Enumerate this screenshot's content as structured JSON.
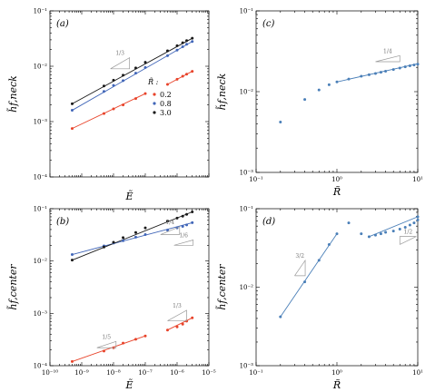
{
  "legend": {
    "title": "R̃ :",
    "entries": [
      {
        "label": "0.2",
        "color": "#e8432a"
      },
      {
        "label": "0.8",
        "color": "#4166b8"
      },
      {
        "label": "3.0",
        "color": "#1a1a1a"
      }
    ]
  },
  "colors": {
    "red": "#e8432a",
    "blue": "#4166b8",
    "black": "#1a1a1a",
    "steel": "#4a7fb8",
    "annot": "#999999"
  },
  "chart_data": [
    {
      "id": "a",
      "panel_label": "(a)",
      "type": "scatter",
      "xlabel": "Ẽ",
      "ylabel": "h̃f,neck",
      "xscale": "log",
      "yscale": "log",
      "xlim": [
        1e-10,
        1e-05
      ],
      "ylim": [
        0.0001,
        0.1
      ],
      "xticks": [
        "10⁻¹⁰",
        "10⁻⁹",
        "10⁻⁸",
        "10⁻⁷",
        "10⁻⁶",
        "10⁻⁵"
      ],
      "yticks": [
        "10⁻⁴",
        "10⁻³",
        "10⁻²",
        "10⁻¹"
      ],
      "xticklabels_visible": false,
      "series": [
        {
          "name": "0.2",
          "color": "#e8432a",
          "x": [
            5e-10,
            5e-09,
            1e-08,
            2e-08,
            5e-08,
            1e-07,
            5e-07,
            1e-06,
            1.5e-06,
            2e-06,
            3e-06
          ],
          "y": [
            0.00075,
            0.0014,
            0.0017,
            0.002,
            0.0026,
            0.0032,
            0.0047,
            0.0058,
            0.0066,
            0.0072,
            0.0081
          ]
        },
        {
          "name": "0.8",
          "color": "#4166b8",
          "x": [
            5e-10,
            5e-09,
            1e-08,
            2e-08,
            5e-08,
            1e-07,
            5e-07,
            1e-06,
            1.5e-06,
            2e-06,
            3e-06
          ],
          "y": [
            0.0016,
            0.0035,
            0.0045,
            0.0055,
            0.0075,
            0.0095,
            0.0155,
            0.0195,
            0.0225,
            0.025,
            0.028
          ]
        },
        {
          "name": "3.0",
          "color": "#1a1a1a",
          "x": [
            5e-10,
            5e-09,
            1e-08,
            2e-08,
            5e-08,
            1e-07,
            5e-07,
            1e-06,
            1.5e-06,
            2e-06,
            3e-06
          ],
          "y": [
            0.0021,
            0.0044,
            0.0056,
            0.0069,
            0.0093,
            0.0118,
            0.019,
            0.0235,
            0.0265,
            0.029,
            0.032
          ]
        }
      ],
      "fits": [
        {
          "color": "#e8432a",
          "x": [
            5e-10,
            1e-07
          ],
          "y": [
            0.00075,
            0.0032
          ]
        },
        {
          "color": "#e8432a",
          "x": [
            5e-07,
            3e-06
          ],
          "y": [
            0.0047,
            0.0081
          ]
        },
        {
          "color": "#4166b8",
          "x": [
            5e-10,
            3e-06
          ],
          "y": [
            0.0016,
            0.028
          ]
        },
        {
          "color": "#1a1a1a",
          "x": [
            5e-10,
            3e-06
          ],
          "y": [
            0.0021,
            0.032
          ]
        }
      ],
      "slopes": [
        {
          "label": "1/3",
          "x": 8e-09,
          "y": 0.009,
          "xr": 4,
          "dir": 1
        }
      ]
    },
    {
      "id": "c",
      "panel_label": "(c)",
      "type": "scatter",
      "xlabel": "R̃",
      "ylabel": "h̃f,neck",
      "xscale": "log",
      "yscale": "log",
      "xlim": [
        0.1,
        10
      ],
      "ylim": [
        0.001,
        0.1
      ],
      "xticks": [
        "10⁻¹",
        "10⁰",
        "10¹"
      ],
      "yticks": [
        "10⁻³",
        "10⁻²",
        "10⁻¹"
      ],
      "xticklabels_visible": true,
      "series": [
        {
          "name": "",
          "color": "#4a7fb8",
          "x": [
            0.2,
            0.4,
            0.6,
            0.8,
            1.0,
            1.4,
            2.0,
            2.5,
            3.0,
            3.5,
            4.0,
            5.0,
            6.0,
            7.0,
            8.0,
            9.0,
            10.0
          ],
          "y": [
            0.0042,
            0.008,
            0.0105,
            0.0122,
            0.0132,
            0.0143,
            0.0155,
            0.0162,
            0.0168,
            0.0174,
            0.0179,
            0.0188,
            0.0196,
            0.0203,
            0.0209,
            0.0214,
            0.0219
          ]
        }
      ],
      "fits": [
        {
          "color": "#4a7fb8",
          "x": [
            1.0,
            10.0
          ],
          "y": [
            0.0132,
            0.0222
          ]
        }
      ],
      "slopes": [
        {
          "label": "1/4",
          "x": 3.0,
          "y": 0.0235,
          "xr": 2,
          "dir": 1
        }
      ]
    },
    {
      "id": "b",
      "panel_label": "(b)",
      "type": "scatter",
      "xlabel": "Ẽ",
      "ylabel": "h̃f,center",
      "xscale": "log",
      "yscale": "log",
      "xlim": [
        1e-10,
        1e-05
      ],
      "ylim": [
        0.0001,
        0.1
      ],
      "xticks": [
        "10⁻¹⁰",
        "10⁻⁹",
        "10⁻⁸",
        "10⁻⁷",
        "10⁻⁶",
        "10⁻⁵"
      ],
      "yticks": [
        "10⁻⁴",
        "10⁻³",
        "10⁻²",
        "10⁻¹"
      ],
      "xticklabels_visible": true,
      "series": [
        {
          "name": "0.2",
          "color": "#e8432a",
          "x": [
            5e-10,
            5e-09,
            1e-08,
            2e-08,
            5e-08,
            1e-07,
            5e-07,
            1e-06,
            1.5e-06,
            2e-06,
            3e-06
          ],
          "y": [
            0.00012,
            0.00019,
            0.00022,
            0.00027,
            0.00032,
            0.00037,
            0.00048,
            0.00055,
            0.00062,
            0.00071,
            0.00082
          ]
        },
        {
          "name": "0.8",
          "color": "#4166b8",
          "x": [
            5e-10,
            5e-09,
            1e-08,
            2e-08,
            5e-08,
            1e-07,
            5e-07,
            1e-06,
            1.5e-06,
            2e-06,
            3e-06
          ],
          "y": [
            0.0133,
            0.0195,
            0.022,
            0.0245,
            0.0285,
            0.032,
            0.039,
            0.043,
            0.046,
            0.049,
            0.054
          ]
        },
        {
          "name": "3.0",
          "color": "#1a1a1a",
          "x": [
            5e-10,
            5e-09,
            1e-08,
            2e-08,
            5e-08,
            1e-07,
            5e-07,
            1e-06,
            1.5e-06,
            2e-06,
            3e-06
          ],
          "y": [
            0.0104,
            0.0185,
            0.0228,
            0.028,
            0.035,
            0.043,
            0.058,
            0.066,
            0.072,
            0.078,
            0.087
          ]
        }
      ],
      "fits": [
        {
          "color": "#e8432a",
          "x": [
            5e-10,
            1e-07
          ],
          "y": [
            0.00012,
            0.00037
          ]
        },
        {
          "color": "#e8432a",
          "x": [
            5e-07,
            3e-06
          ],
          "y": [
            0.00048,
            0.00082
          ]
        },
        {
          "color": "#4166b8",
          "x": [
            5e-10,
            3e-06
          ],
          "y": [
            0.0133,
            0.054
          ]
        },
        {
          "color": "#1a1a1a",
          "x": [
            5e-10,
            3e-06
          ],
          "y": [
            0.0104,
            0.087
          ]
        }
      ],
      "slopes": [
        {
          "label": "1/4",
          "x": 3e-07,
          "y": 0.032,
          "xr": 4,
          "dir": 1
        },
        {
          "label": "1/6",
          "x": 8e-07,
          "y": 0.02,
          "xr": 4,
          "dir": 1
        },
        {
          "label": "1/3",
          "x": 5e-07,
          "y": 0.00072,
          "xr": 4,
          "dir": 1
        },
        {
          "label": "1/5",
          "x": 3e-09,
          "y": 0.00022,
          "xr": 4,
          "dir": 1
        }
      ]
    },
    {
      "id": "d",
      "panel_label": "(d)",
      "type": "scatter",
      "xlabel": "R̃",
      "ylabel": "h̃f,center",
      "xscale": "log",
      "yscale": "log",
      "xlim": [
        0.1,
        10
      ],
      "ylim": [
        0.001,
        0.1
      ],
      "xticks": [
        "10⁻¹",
        "10⁰",
        "10¹"
      ],
      "yticks": [
        "10⁻³",
        "10⁻²",
        "10⁻¹"
      ],
      "xticklabels_visible": true,
      "series": [
        {
          "name": "",
          "color": "#4a7fb8",
          "x": [
            0.2,
            0.4,
            0.6,
            0.8,
            1.0,
            1.4,
            2.0,
            2.5,
            3.0,
            3.5,
            4.0,
            5.0,
            6.0,
            7.0,
            8.0,
            9.0,
            10.0
          ],
          "y": [
            0.0042,
            0.0117,
            0.022,
            0.035,
            0.048,
            0.066,
            0.048,
            0.044,
            0.046,
            0.048,
            0.05,
            0.052,
            0.055,
            0.058,
            0.062,
            0.066,
            0.072
          ]
        },
        {
          "name": "",
          "color": "#4a7fb8",
          "x": [
            10.0
          ],
          "y": [
            0.079
          ]
        }
      ],
      "fits": [
        {
          "color": "#4a7fb8",
          "x": [
            0.2,
            1.0
          ],
          "y": [
            0.0042,
            0.048
          ]
        },
        {
          "color": "#4a7fb8",
          "x": [
            2.5,
            10.0
          ],
          "y": [
            0.044,
            0.079
          ]
        }
      ],
      "slopes": [
        {
          "label": "3/2",
          "x": 0.3,
          "y": 0.014,
          "xr": 1.35,
          "dir": 1
        },
        {
          "label": "1/2",
          "x": 6.0,
          "y": 0.035,
          "xr": 1.6,
          "dir": -1
        }
      ]
    }
  ]
}
